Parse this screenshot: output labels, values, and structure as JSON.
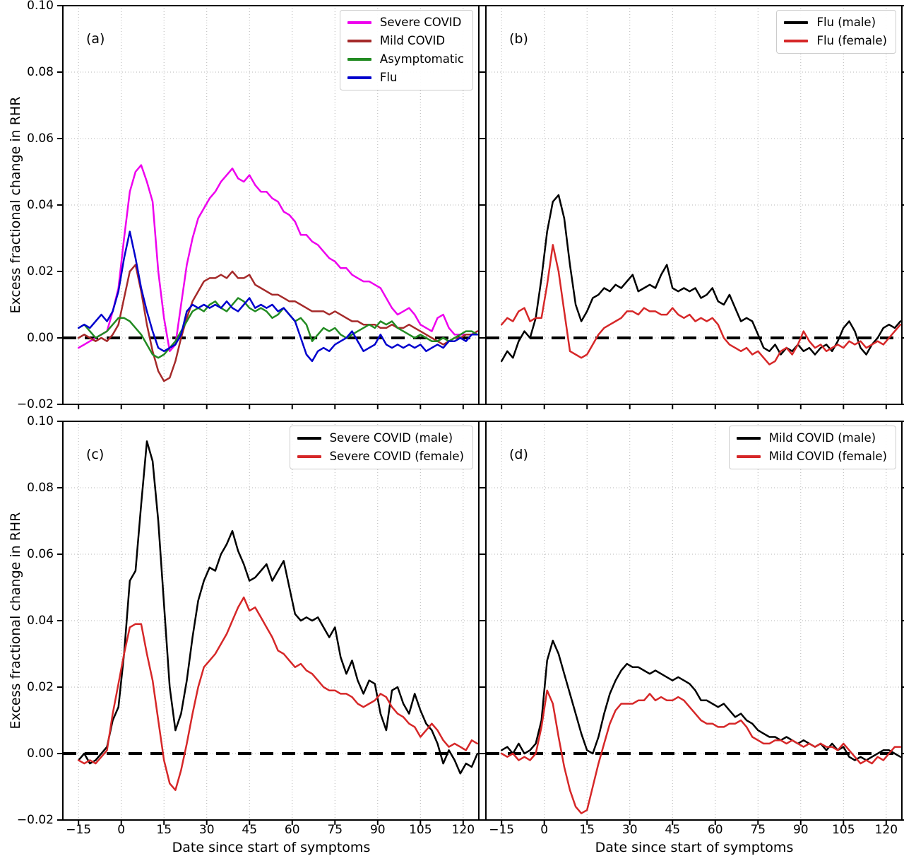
{
  "figure": {
    "background": "#ffffff"
  },
  "chart_data": {
    "type": "line",
    "xlabel": "Date since start of symptoms",
    "ylabel": "Excess fractional change in RHR",
    "xlim": [
      -20.5,
      125.5
    ],
    "ylim": [
      -0.02,
      0.1
    ],
    "grid": true,
    "legend_position": "top-right",
    "zero_line": {
      "color": "#000000",
      "style": "dashed"
    },
    "x_ticks": [
      -15,
      0,
      15,
      30,
      45,
      60,
      75,
      90,
      105,
      120
    ],
    "x_tick_labels": [
      "−15",
      "0",
      "15",
      "30",
      "45",
      "60",
      "75",
      "90",
      "105",
      "120"
    ],
    "y_ticks": [
      0.1,
      0.08,
      0.06,
      0.04,
      0.02,
      0.0,
      -0.02
    ],
    "y_tick_labels": [
      "0.10",
      "0.08",
      "0.06",
      "0.04",
      "0.02",
      "0.00",
      "−0.02"
    ],
    "x": [
      -15,
      -13,
      -11,
      -9,
      -7,
      -5,
      -3,
      -1,
      1,
      3,
      5,
      7,
      9,
      11,
      13,
      15,
      17,
      19,
      21,
      23,
      25,
      27,
      29,
      31,
      33,
      35,
      37,
      39,
      41,
      43,
      45,
      47,
      49,
      51,
      53,
      55,
      57,
      59,
      61,
      63,
      65,
      67,
      69,
      71,
      73,
      75,
      77,
      79,
      81,
      83,
      85,
      87,
      89,
      91,
      93,
      95,
      97,
      99,
      101,
      103,
      105,
      107,
      109,
      111,
      113,
      115,
      117,
      119,
      121,
      123,
      125
    ],
    "panels": [
      {
        "id": "a",
        "label": "(a)",
        "series": [
          {
            "name": "Severe COVID",
            "color": "#ee00ee",
            "values": [
              -0.003,
              -0.002,
              -0.001,
              0.0,
              0.001,
              0.002,
              0.008,
              0.015,
              0.03,
              0.044,
              0.05,
              0.052,
              0.047,
              0.041,
              0.02,
              0.006,
              -0.004,
              -0.002,
              0.01,
              0.022,
              0.03,
              0.036,
              0.039,
              0.042,
              0.044,
              0.047,
              0.049,
              0.051,
              0.048,
              0.047,
              0.049,
              0.046,
              0.044,
              0.044,
              0.042,
              0.041,
              0.038,
              0.037,
              0.035,
              0.031,
              0.031,
              0.029,
              0.028,
              0.026,
              0.024,
              0.023,
              0.021,
              0.021,
              0.019,
              0.018,
              0.017,
              0.017,
              0.016,
              0.015,
              0.012,
              0.009,
              0.007,
              0.008,
              0.009,
              0.007,
              0.004,
              0.003,
              0.002,
              0.006,
              0.007,
              0.003,
              0.001,
              0.001,
              0.001,
              0.001,
              0.002
            ]
          },
          {
            "name": "Mild COVID",
            "color": "#a52a2a",
            "values": [
              0.0,
              0.001,
              0.0,
              -0.001,
              0.0,
              -0.001,
              0.001,
              0.004,
              0.012,
              0.02,
              0.022,
              0.014,
              0.004,
              -0.004,
              -0.01,
              -0.013,
              -0.012,
              -0.007,
              0.0,
              0.006,
              0.011,
              0.014,
              0.017,
              0.018,
              0.018,
              0.019,
              0.018,
              0.02,
              0.018,
              0.018,
              0.019,
              0.016,
              0.015,
              0.014,
              0.013,
              0.013,
              0.012,
              0.011,
              0.011,
              0.01,
              0.009,
              0.008,
              0.008,
              0.008,
              0.007,
              0.008,
              0.007,
              0.006,
              0.005,
              0.005,
              0.004,
              0.004,
              0.004,
              0.003,
              0.003,
              0.004,
              0.003,
              0.003,
              0.004,
              0.003,
              0.002,
              0.001,
              0.0,
              -0.001,
              -0.002,
              -0.001,
              0.0,
              0.0,
              0.001,
              0.001,
              0.002
            ]
          },
          {
            "name": "Asymptomatic",
            "color": "#228b22",
            "values": [
              0.003,
              0.004,
              0.002,
              0.0,
              0.001,
              0.002,
              0.004,
              0.006,
              0.006,
              0.005,
              0.003,
              0.001,
              -0.002,
              -0.005,
              -0.006,
              -0.005,
              -0.003,
              -0.001,
              0.002,
              0.005,
              0.008,
              0.009,
              0.008,
              0.01,
              0.011,
              0.009,
              0.008,
              0.01,
              0.012,
              0.011,
              0.009,
              0.008,
              0.009,
              0.008,
              0.006,
              0.007,
              0.009,
              0.007,
              0.005,
              0.006,
              0.004,
              -0.001,
              0.001,
              0.003,
              0.002,
              0.003,
              0.001,
              0.0,
              0.001,
              0.002,
              0.003,
              0.004,
              0.003,
              0.005,
              0.004,
              0.005,
              0.003,
              0.002,
              0.001,
              0.0,
              0.001,
              0.0,
              -0.001,
              -0.001,
              0.0,
              -0.001,
              0.0,
              0.001,
              0.002,
              0.002,
              0.001
            ]
          },
          {
            "name": "Flu",
            "color": "#0000cd",
            "values": [
              0.003,
              0.004,
              0.003,
              0.005,
              0.007,
              0.005,
              0.008,
              0.014,
              0.024,
              0.032,
              0.024,
              0.015,
              0.008,
              0.002,
              -0.003,
              -0.004,
              -0.003,
              -0.002,
              0.001,
              0.008,
              0.01,
              0.009,
              0.01,
              0.009,
              0.01,
              0.009,
              0.011,
              0.009,
              0.008,
              0.01,
              0.012,
              0.009,
              0.01,
              0.009,
              0.01,
              0.008,
              0.009,
              0.007,
              0.005,
              0.0,
              -0.005,
              -0.007,
              -0.004,
              -0.003,
              -0.004,
              -0.002,
              -0.001,
              0.0,
              0.002,
              -0.001,
              -0.004,
              -0.003,
              -0.002,
              0.001,
              -0.002,
              -0.003,
              -0.002,
              -0.003,
              -0.002,
              -0.003,
              -0.002,
              -0.004,
              -0.003,
              -0.002,
              -0.003,
              -0.001,
              -0.001,
              0.0,
              -0.001,
              0.001,
              0.001
            ]
          }
        ]
      },
      {
        "id": "b",
        "label": "(b)",
        "series": [
          {
            "name": "Flu (male)",
            "color": "#000000",
            "values": [
              -0.007,
              -0.004,
              -0.006,
              -0.001,
              0.002,
              0.0,
              0.006,
              0.018,
              0.032,
              0.041,
              0.043,
              0.036,
              0.022,
              0.01,
              0.005,
              0.008,
              0.012,
              0.013,
              0.015,
              0.014,
              0.016,
              0.015,
              0.017,
              0.019,
              0.014,
              0.015,
              0.016,
              0.015,
              0.019,
              0.022,
              0.015,
              0.014,
              0.015,
              0.014,
              0.015,
              0.012,
              0.013,
              0.015,
              0.011,
              0.01,
              0.013,
              0.009,
              0.005,
              0.006,
              0.005,
              0.001,
              -0.003,
              -0.004,
              -0.002,
              -0.005,
              -0.003,
              -0.004,
              -0.002,
              -0.004,
              -0.003,
              -0.005,
              -0.003,
              -0.002,
              -0.004,
              -0.001,
              0.003,
              0.005,
              0.002,
              -0.003,
              -0.005,
              -0.002,
              0.0,
              0.003,
              0.004,
              0.003,
              0.005
            ]
          },
          {
            "name": "Flu (female)",
            "color": "#d62728",
            "values": [
              0.004,
              0.006,
              0.005,
              0.008,
              0.009,
              0.005,
              0.006,
              0.006,
              0.016,
              0.028,
              0.02,
              0.008,
              -0.004,
              -0.005,
              -0.006,
              -0.005,
              -0.002,
              0.001,
              0.003,
              0.004,
              0.005,
              0.006,
              0.008,
              0.008,
              0.007,
              0.009,
              0.008,
              0.008,
              0.007,
              0.007,
              0.009,
              0.007,
              0.006,
              0.007,
              0.005,
              0.006,
              0.005,
              0.006,
              0.004,
              0.0,
              -0.002,
              -0.003,
              -0.004,
              -0.003,
              -0.005,
              -0.004,
              -0.006,
              -0.008,
              -0.007,
              -0.004,
              -0.003,
              -0.005,
              -0.002,
              0.002,
              -0.001,
              -0.003,
              -0.002,
              -0.004,
              -0.003,
              -0.002,
              -0.003,
              -0.001,
              -0.002,
              -0.001,
              -0.003,
              -0.002,
              -0.001,
              -0.002,
              0.0,
              0.002,
              0.004
            ]
          }
        ]
      },
      {
        "id": "c",
        "label": "(c)",
        "series": [
          {
            "name": "Severe COVID (male)",
            "color": "#000000",
            "values": [
              -0.002,
              0.0,
              -0.003,
              -0.002,
              0.0,
              0.002,
              0.01,
              0.014,
              0.03,
              0.052,
              0.055,
              0.075,
              0.094,
              0.088,
              0.07,
              0.045,
              0.02,
              0.007,
              0.012,
              0.022,
              0.035,
              0.046,
              0.052,
              0.056,
              0.055,
              0.06,
              0.063,
              0.067,
              0.061,
              0.057,
              0.052,
              0.053,
              0.055,
              0.057,
              0.052,
              0.055,
              0.058,
              0.05,
              0.042,
              0.04,
              0.041,
              0.04,
              0.041,
              0.038,
              0.035,
              0.038,
              0.029,
              0.024,
              0.028,
              0.022,
              0.018,
              0.022,
              0.021,
              0.012,
              0.007,
              0.019,
              0.02,
              0.015,
              0.012,
              0.018,
              0.013,
              0.009,
              0.007,
              0.003,
              -0.003,
              0.001,
              -0.002,
              -0.006,
              -0.003,
              -0.004,
              0.0
            ]
          },
          {
            "name": "Severe COVID (female)",
            "color": "#d62728",
            "values": [
              -0.002,
              -0.003,
              -0.002,
              -0.003,
              -0.001,
              0.001,
              0.012,
              0.021,
              0.03,
              0.038,
              0.039,
              0.039,
              0.03,
              0.022,
              0.01,
              -0.002,
              -0.009,
              -0.011,
              -0.005,
              0.003,
              0.012,
              0.02,
              0.026,
              0.028,
              0.03,
              0.033,
              0.036,
              0.04,
              0.044,
              0.047,
              0.043,
              0.044,
              0.041,
              0.038,
              0.035,
              0.031,
              0.03,
              0.028,
              0.026,
              0.027,
              0.025,
              0.024,
              0.022,
              0.02,
              0.019,
              0.019,
              0.018,
              0.018,
              0.017,
              0.015,
              0.014,
              0.015,
              0.016,
              0.018,
              0.017,
              0.014,
              0.012,
              0.011,
              0.009,
              0.008,
              0.005,
              0.007,
              0.009,
              0.007,
              0.004,
              0.002,
              0.003,
              0.002,
              0.001,
              0.004,
              0.003
            ]
          }
        ]
      },
      {
        "id": "d",
        "label": "(d)",
        "series": [
          {
            "name": "Mild COVID (male)",
            "color": "#000000",
            "values": [
              0.001,
              0.002,
              0.0,
              0.003,
              0.0,
              0.001,
              0.003,
              0.01,
              0.028,
              0.034,
              0.03,
              0.024,
              0.018,
              0.012,
              0.006,
              0.001,
              0.0,
              0.005,
              0.012,
              0.018,
              0.022,
              0.025,
              0.027,
              0.026,
              0.026,
              0.025,
              0.024,
              0.025,
              0.024,
              0.023,
              0.022,
              0.023,
              0.022,
              0.021,
              0.019,
              0.016,
              0.016,
              0.015,
              0.014,
              0.015,
              0.013,
              0.011,
              0.012,
              0.01,
              0.009,
              0.007,
              0.006,
              0.005,
              0.005,
              0.004,
              0.005,
              0.004,
              0.003,
              0.004,
              0.003,
              0.002,
              0.003,
              0.001,
              0.003,
              0.001,
              0.002,
              -0.001,
              -0.002,
              -0.001,
              -0.002,
              -0.001,
              0.0,
              0.001,
              0.001,
              0.0,
              -0.001
            ]
          },
          {
            "name": "Mild COVID (female)",
            "color": "#d62728",
            "values": [
              0.0,
              -0.001,
              0.0,
              -0.002,
              -0.001,
              -0.002,
              0.0,
              0.008,
              0.019,
              0.015,
              0.005,
              -0.004,
              -0.011,
              -0.016,
              -0.018,
              -0.017,
              -0.01,
              -0.003,
              0.003,
              0.009,
              0.013,
              0.015,
              0.015,
              0.015,
              0.016,
              0.016,
              0.018,
              0.016,
              0.017,
              0.016,
              0.016,
              0.017,
              0.016,
              0.014,
              0.012,
              0.01,
              0.009,
              0.009,
              0.008,
              0.008,
              0.009,
              0.009,
              0.01,
              0.008,
              0.005,
              0.004,
              0.003,
              0.003,
              0.004,
              0.004,
              0.003,
              0.004,
              0.003,
              0.002,
              0.003,
              0.002,
              0.003,
              0.002,
              0.002,
              0.001,
              0.003,
              0.001,
              -0.001,
              -0.003,
              -0.002,
              -0.003,
              -0.001,
              -0.002,
              0.0,
              0.002,
              0.002
            ]
          }
        ]
      }
    ]
  }
}
